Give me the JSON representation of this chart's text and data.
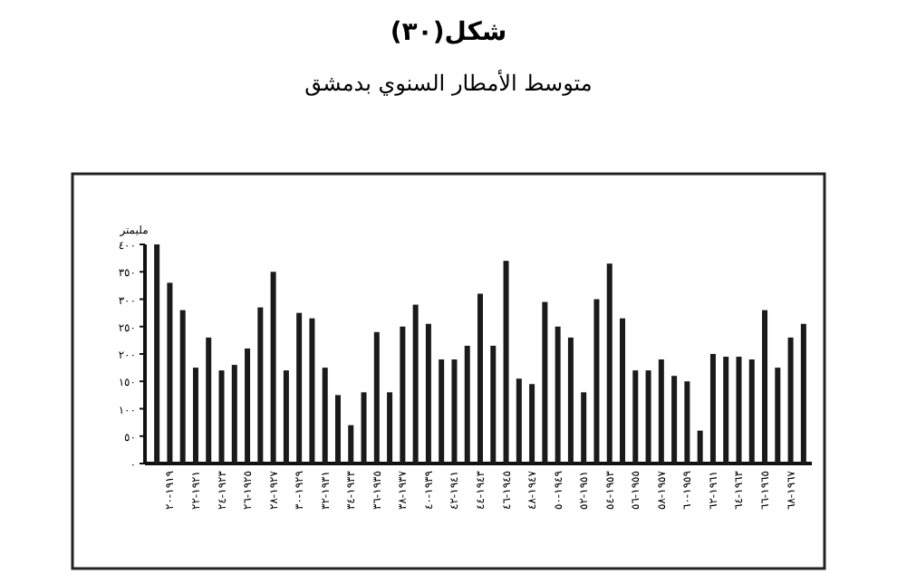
{
  "chart_data": {
    "type": "bar",
    "title": "شكل(٣٠)",
    "subtitle": "متوسط الأمطار السنوي بدمشق",
    "ylabel": "مليمتر",
    "categories": [
      null,
      "١٩١٩-٢٠",
      null,
      "١٩٢١-٢٢",
      null,
      "١٩٢٣-٢٤",
      null,
      "١٩٢٥-٢٦",
      null,
      "١٩٢٧-٢٨",
      null,
      "١٩٢٩-٣٠",
      null,
      "١٩٣١-٣٢",
      null,
      "١٩٣٣-٣٤",
      null,
      "١٩٣٥-٣٦",
      null,
      "١٩٣٧-٣٨",
      null,
      "١٩٣٩-٤٠",
      null,
      "١٩٤١-٤٢",
      null,
      "١٩٤٣-٤٤",
      null,
      "١٩٤٥-٤٦",
      null,
      "١٩٤٧-٤٨",
      null,
      "١٩٤٩-٥٠",
      null,
      "١٩٥١-٥٢",
      null,
      "١٩٥٣-٥٤",
      null,
      "١٩٥٥-٥٦",
      null,
      "١٩٥٧-٥٨",
      null,
      "١٩٥٩-٦٠",
      null,
      "١٩٦١-٦٢",
      null,
      "١٩٦٣-٦٤",
      null,
      "١٩٦٥-٦٦",
      null,
      "١٩٦٧-٦٨",
      null
    ],
    "values": [
      400,
      330,
      280,
      175,
      230,
      170,
      180,
      210,
      285,
      350,
      170,
      275,
      265,
      175,
      125,
      70,
      130,
      240,
      130,
      250,
      290,
      255,
      190,
      190,
      215,
      310,
      215,
      370,
      155,
      145,
      295,
      250,
      230,
      130,
      300,
      365,
      265,
      170,
      170,
      190,
      160,
      150,
      60,
      200,
      195,
      195,
      190,
      280,
      175,
      230,
      255
    ],
    "color": "#1a1a1a",
    "ylim": [
      0,
      400
    ],
    "yticks": [
      {
        "value": 0,
        "label": "٠"
      },
      {
        "value": 50,
        "label": "٥٠"
      },
      {
        "value": 100,
        "label": "١٠٠"
      },
      {
        "value": 150,
        "label": "١٥٠"
      },
      {
        "value": 200,
        "label": "٢٠٠"
      },
      {
        "value": 250,
        "label": "٢٥٠"
      },
      {
        "value": 300,
        "label": "٣٠٠"
      },
      {
        "value": 350,
        "label": "٣٥٠"
      },
      {
        "value": 400,
        "label": "٤٠٠"
      }
    ]
  }
}
